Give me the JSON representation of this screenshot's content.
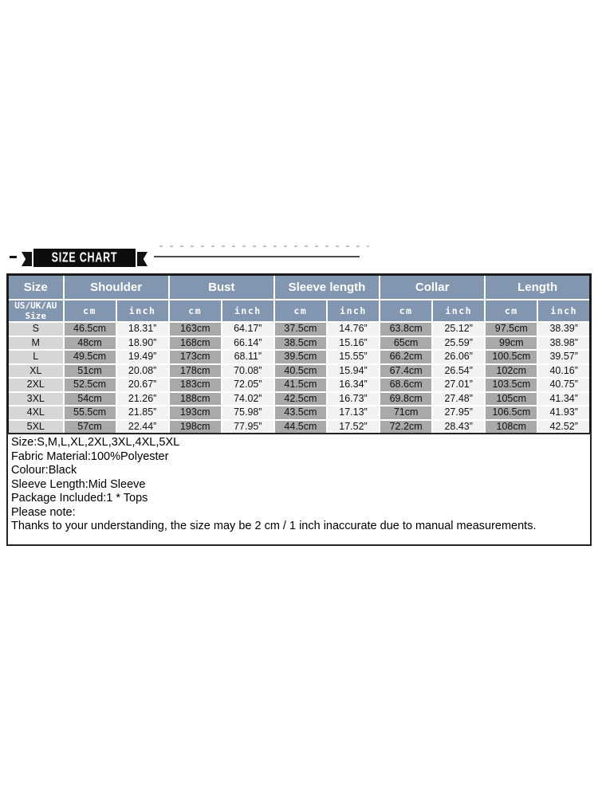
{
  "banner": {
    "title": "SIZE CHART"
  },
  "chart_data": {
    "type": "table",
    "title": "SIZE CHART",
    "column_groups": [
      {
        "label": "Size",
        "span": 1
      },
      {
        "label": "Shoulder",
        "span": 2
      },
      {
        "label": "Bust",
        "span": 2
      },
      {
        "label": "Sleeve length",
        "span": 2
      },
      {
        "label": "Collar",
        "span": 2
      },
      {
        "label": "Length",
        "span": 2
      }
    ],
    "subheader": {
      "size_label": "US/UK/AU Size",
      "unit_labels": [
        "cm",
        "inch"
      ]
    },
    "rows": [
      {
        "size": "S",
        "values": [
          "46.5cm",
          "18.31”",
          "163cm",
          "64.17”",
          "37.5cm",
          "14.76”",
          "63.8cm",
          "25.12”",
          "97.5cm",
          "38.39”"
        ]
      },
      {
        "size": "M",
        "values": [
          "48cm",
          "18.90”",
          "168cm",
          "66.14”",
          "38.5cm",
          "15.16”",
          "65cm",
          "25.59”",
          "99cm",
          "38.98”"
        ]
      },
      {
        "size": "L",
        "values": [
          "49.5cm",
          "19.49”",
          "173cm",
          "68.11”",
          "39.5cm",
          "15.55”",
          "66.2cm",
          "26.06”",
          "100.5cm",
          "39.57”"
        ]
      },
      {
        "size": "XL",
        "values": [
          "51cm",
          "20.08”",
          "178cm",
          "70.08”",
          "40.5cm",
          "15.94”",
          "67.4cm",
          "26.54”",
          "102cm",
          "40.16”"
        ]
      },
      {
        "size": "2XL",
        "values": [
          "52.5cm",
          "20.67”",
          "183cm",
          "72.05”",
          "41.5cm",
          "16.34”",
          "68.6cm",
          "27.01”",
          "103.5cm",
          "40.75”"
        ]
      },
      {
        "size": "3XL",
        "values": [
          "54cm",
          "21.26”",
          "188cm",
          "74.02”",
          "42.5cm",
          "16.73”",
          "69.8cm",
          "27.48”",
          "105cm",
          "41.34”"
        ]
      },
      {
        "size": "4XL",
        "values": [
          "55.5cm",
          "21.85”",
          "193cm",
          "75.98”",
          "43.5cm",
          "17.13”",
          "71cm",
          "27.95”",
          "106.5cm",
          "41.93”"
        ]
      },
      {
        "size": "5XL",
        "values": [
          "57cm",
          "22.44”",
          "198cm",
          "77.95”",
          "44.5cm",
          "17.52”",
          "72.2cm",
          "28.43”",
          "108cm",
          "42.52”"
        ]
      }
    ]
  },
  "details": {
    "lines": [
      "Size:S,M,L,XL,2XL,3XL,4XL,5XL",
      "Fabric Material:100%Polyester",
      "Colour:Black",
      "Sleeve Length:Mid Sleeve",
      "Package Included:1 * Tops",
      "Please note:",
      "Thanks to your understanding, the size may be 2 cm / 1 inch inaccurate due to manual measurements."
    ]
  },
  "colors": {
    "header_blue": "#8296B0",
    "cm_cell_gray": "#A9A9A9",
    "size_cell_gray": "#D6D6D6",
    "inch_cell_light": "#F2F2F2",
    "ribbon_black": "#0D0D0D",
    "outer_border": "#1B1B1B"
  }
}
